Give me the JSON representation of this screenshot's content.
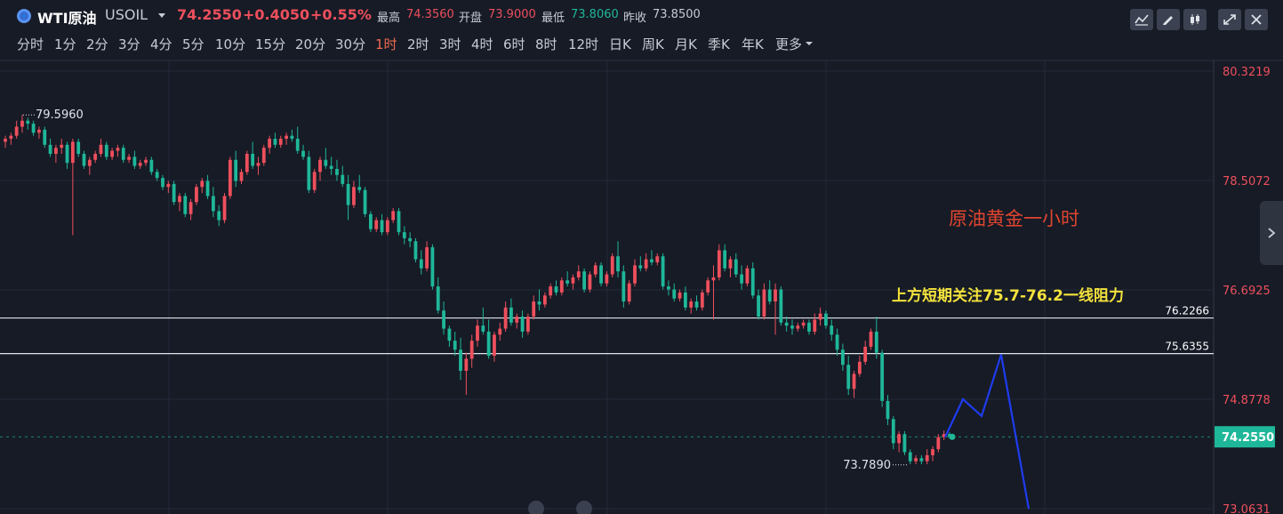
{
  "header": {
    "symbol_name": "WTI原油",
    "symbol_code": "USOIL",
    "last_price": "74.2550",
    "change": "+0.4050",
    "change_pct": "+0.55%",
    "high_label": "最高",
    "high": "74.3560",
    "open_label": "开盘",
    "open": "73.9000",
    "low_label": "最低",
    "low": "73.8060",
    "prev_label": "昨收",
    "prev_close": "73.8500"
  },
  "toolbar": {
    "icons": [
      "line-chart-icon",
      "draw-pen-icon",
      "candlestick-icon",
      "fullscreen-icon",
      "close-icon"
    ]
  },
  "periods": {
    "items": [
      "分时",
      "1分",
      "2分",
      "3分",
      "4分",
      "5分",
      "10分",
      "15分",
      "20分",
      "30分",
      "1时",
      "2时",
      "3时",
      "4时",
      "6时",
      "8时",
      "12时",
      "日K",
      "周K",
      "月K",
      "季K",
      "年K",
      "更多"
    ],
    "active": "1时"
  },
  "colors": {
    "background": "#161b26",
    "up": "#ee4f5c",
    "down": "#1fb799",
    "annotation_title": "#e0452f",
    "annotation_note": "#f4e23c",
    "projection": "#1f3cf0",
    "level_line": "#dfe3ea"
  },
  "chart_data": {
    "type": "candlestick",
    "y_axis_ticks": [
      80.3219,
      78.5072,
      76.6925,
      74.8778,
      73.0631
    ],
    "y_axis_labels": [
      "80.3219",
      "78.5072",
      "76.6925",
      "74.8778",
      "73.0631"
    ],
    "ylim": [
      73.0631,
      80.3219
    ],
    "horizontal_levels": [
      {
        "value": 76.2266,
        "label": "76.2266"
      },
      {
        "value": 75.6355,
        "label": "75.6355"
      }
    ],
    "current_price": {
      "value": 74.255,
      "label": "74.2550"
    },
    "extremes": {
      "high": {
        "value": 79.596,
        "label": "79.5960"
      },
      "low": {
        "value": 73.789,
        "label": "73.7890"
      }
    },
    "annotations": {
      "title": "原油黄金一小时",
      "note": "上方短期关注75.7-76.2一线阻力"
    },
    "projection_path": [
      74.25,
      74.88,
      74.6,
      75.62,
      73.06
    ],
    "ohlc": [
      [
        79.15,
        79.25,
        79.05,
        79.2
      ],
      [
        79.2,
        79.3,
        79.1,
        79.25
      ],
      [
        79.25,
        79.5,
        79.2,
        79.4
      ],
      [
        79.4,
        79.6,
        79.3,
        79.5
      ],
      [
        79.5,
        79.55,
        79.35,
        79.45
      ],
      [
        79.45,
        79.5,
        79.25,
        79.3
      ],
      [
        79.3,
        79.4,
        79.2,
        79.35
      ],
      [
        79.35,
        79.4,
        79.05,
        79.1
      ],
      [
        79.1,
        79.2,
        78.9,
        78.95
      ],
      [
        78.95,
        79.1,
        78.8,
        79.05
      ],
      [
        79.05,
        79.2,
        78.95,
        79.1
      ],
      [
        79.1,
        79.15,
        78.7,
        78.8
      ],
      [
        78.8,
        79.2,
        77.6,
        79.15
      ],
      [
        79.15,
        79.2,
        78.9,
        78.95
      ],
      [
        78.95,
        79.0,
        78.7,
        78.75
      ],
      [
        78.75,
        78.9,
        78.6,
        78.85
      ],
      [
        78.85,
        79.0,
        78.8,
        78.95
      ],
      [
        78.95,
        79.2,
        78.9,
        79.1
      ],
      [
        79.1,
        79.15,
        78.85,
        78.9
      ],
      [
        78.9,
        79.05,
        78.85,
        79.0
      ],
      [
        79.0,
        79.1,
        78.9,
        79.05
      ],
      [
        79.05,
        79.1,
        78.8,
        78.85
      ],
      [
        78.85,
        78.95,
        78.8,
        78.9
      ],
      [
        78.9,
        79.0,
        78.7,
        78.75
      ],
      [
        78.75,
        78.85,
        78.7,
        78.8
      ],
      [
        78.8,
        78.9,
        78.75,
        78.85
      ],
      [
        78.85,
        78.9,
        78.6,
        78.65
      ],
      [
        78.65,
        78.7,
        78.5,
        78.55
      ],
      [
        78.55,
        78.6,
        78.35,
        78.4
      ],
      [
        78.4,
        78.5,
        78.3,
        78.45
      ],
      [
        78.45,
        78.5,
        78.1,
        78.15
      ],
      [
        78.15,
        78.3,
        78.0,
        78.25
      ],
      [
        78.25,
        78.3,
        77.9,
        77.95
      ],
      [
        77.95,
        78.2,
        77.85,
        78.15
      ],
      [
        78.15,
        78.45,
        78.1,
        78.4
      ],
      [
        78.4,
        78.55,
        78.3,
        78.5
      ],
      [
        78.5,
        78.6,
        78.2,
        78.25
      ],
      [
        78.25,
        78.4,
        77.9,
        78.0
      ],
      [
        78.0,
        78.1,
        77.75,
        77.85
      ],
      [
        77.85,
        78.3,
        77.8,
        78.25
      ],
      [
        78.25,
        78.9,
        78.2,
        78.85
      ],
      [
        78.85,
        79.0,
        78.4,
        78.5
      ],
      [
        78.5,
        78.7,
        78.45,
        78.65
      ],
      [
        78.65,
        79.0,
        78.6,
        78.95
      ],
      [
        78.95,
        79.15,
        78.7,
        78.75
      ],
      [
        78.75,
        78.9,
        78.6,
        78.8
      ],
      [
        78.8,
        79.1,
        78.75,
        79.05
      ],
      [
        79.05,
        79.25,
        78.95,
        79.2
      ],
      [
        79.2,
        79.3,
        79.05,
        79.1
      ],
      [
        79.1,
        79.25,
        79.05,
        79.2
      ],
      [
        79.2,
        79.3,
        79.1,
        79.25
      ],
      [
        79.25,
        79.35,
        79.15,
        79.2
      ],
      [
        79.2,
        79.4,
        78.95,
        79.0
      ],
      [
        79.0,
        79.1,
        78.85,
        78.9
      ],
      [
        78.9,
        79.0,
        78.3,
        78.35
      ],
      [
        78.35,
        78.7,
        78.3,
        78.65
      ],
      [
        78.65,
        78.9,
        78.5,
        78.85
      ],
      [
        78.85,
        79.05,
        78.7,
        78.75
      ],
      [
        78.75,
        78.9,
        78.6,
        78.7
      ],
      [
        78.7,
        78.85,
        78.5,
        78.6
      ],
      [
        78.6,
        78.75,
        78.4,
        78.45
      ],
      [
        78.45,
        78.6,
        77.85,
        78.1
      ],
      [
        78.1,
        78.5,
        78.05,
        78.4
      ],
      [
        78.4,
        78.6,
        78.3,
        78.35
      ],
      [
        78.35,
        78.4,
        77.9,
        77.95
      ],
      [
        77.95,
        78.0,
        77.65,
        77.7
      ],
      [
        77.7,
        77.9,
        77.65,
        77.85
      ],
      [
        77.85,
        77.95,
        77.6,
        77.65
      ],
      [
        77.65,
        77.9,
        77.6,
        77.85
      ],
      [
        77.85,
        78.05,
        77.8,
        78.0
      ],
      [
        78.0,
        78.05,
        77.6,
        77.65
      ],
      [
        77.65,
        77.75,
        77.45,
        77.55
      ],
      [
        77.55,
        77.65,
        77.4,
        77.5
      ],
      [
        77.5,
        77.55,
        77.15,
        77.2
      ],
      [
        77.2,
        77.35,
        76.95,
        77.05
      ],
      [
        77.05,
        77.5,
        77.0,
        77.4
      ],
      [
        77.4,
        77.45,
        76.7,
        76.75
      ],
      [
        76.75,
        76.9,
        76.3,
        76.35
      ],
      [
        76.35,
        76.5,
        75.95,
        76.05
      ],
      [
        76.05,
        76.1,
        75.75,
        75.85
      ],
      [
        75.85,
        76.0,
        75.6,
        75.7
      ],
      [
        75.7,
        75.9,
        75.2,
        75.35
      ],
      [
        75.35,
        75.65,
        74.95,
        75.55
      ],
      [
        75.55,
        75.95,
        75.4,
        75.85
      ],
      [
        75.85,
        76.2,
        75.75,
        76.1
      ],
      [
        76.1,
        76.4,
        75.95,
        76.0
      ],
      [
        76.0,
        76.2,
        75.55,
        75.6
      ],
      [
        75.6,
        76.0,
        75.5,
        75.95
      ],
      [
        75.95,
        76.15,
        75.85,
        76.05
      ],
      [
        76.05,
        76.5,
        76.0,
        76.4
      ],
      [
        76.4,
        76.55,
        76.1,
        76.15
      ],
      [
        76.15,
        76.3,
        76.05,
        76.25
      ],
      [
        76.25,
        76.35,
        75.9,
        76.0
      ],
      [
        76.0,
        76.3,
        75.95,
        76.25
      ],
      [
        76.25,
        76.6,
        76.2,
        76.5
      ],
      [
        76.5,
        76.7,
        76.35,
        76.45
      ],
      [
        76.45,
        76.65,
        76.4,
        76.6
      ],
      [
        76.6,
        76.8,
        76.55,
        76.75
      ],
      [
        76.75,
        76.85,
        76.6,
        76.65
      ],
      [
        76.65,
        76.9,
        76.6,
        76.85
      ],
      [
        76.85,
        77.0,
        76.75,
        76.8
      ],
      [
        76.8,
        76.95,
        76.7,
        76.9
      ],
      [
        76.9,
        77.1,
        76.85,
        77.0
      ],
      [
        77.0,
        77.05,
        76.65,
        76.7
      ],
      [
        76.7,
        77.0,
        76.65,
        76.95
      ],
      [
        76.95,
        77.15,
        76.9,
        77.1
      ],
      [
        77.1,
        77.15,
        76.75,
        76.8
      ],
      [
        76.8,
        77.0,
        76.75,
        76.95
      ],
      [
        76.95,
        77.3,
        76.9,
        77.25
      ],
      [
        77.25,
        77.5,
        76.9,
        77.0
      ],
      [
        77.0,
        77.1,
        76.4,
        76.5
      ],
      [
        76.5,
        76.85,
        76.45,
        76.8
      ],
      [
        76.8,
        77.2,
        76.75,
        77.1
      ],
      [
        77.1,
        77.25,
        77.0,
        77.05
      ],
      [
        77.05,
        77.3,
        77.0,
        77.2
      ],
      [
        77.2,
        77.35,
        77.1,
        77.15
      ],
      [
        77.15,
        77.3,
        77.1,
        77.25
      ],
      [
        77.25,
        77.3,
        76.7,
        76.75
      ],
      [
        76.75,
        76.85,
        76.6,
        76.7
      ],
      [
        76.7,
        76.8,
        76.5,
        76.55
      ],
      [
        76.55,
        76.7,
        76.5,
        76.65
      ],
      [
        76.65,
        76.75,
        76.35,
        76.4
      ],
      [
        76.4,
        76.55,
        76.3,
        76.5
      ],
      [
        76.5,
        76.6,
        76.35,
        76.4
      ],
      [
        76.4,
        76.7,
        76.35,
        76.65
      ],
      [
        76.65,
        76.9,
        76.6,
        76.85
      ],
      [
        76.85,
        77.1,
        76.2,
        76.9
      ],
      [
        76.9,
        77.45,
        76.85,
        77.35
      ],
      [
        77.35,
        77.45,
        77.0,
        77.05
      ],
      [
        77.05,
        77.25,
        76.9,
        77.2
      ],
      [
        77.2,
        77.3,
        76.9,
        76.95
      ],
      [
        76.95,
        77.1,
        76.7,
        76.8
      ],
      [
        76.8,
        77.1,
        76.75,
        77.05
      ],
      [
        77.05,
        77.15,
        76.55,
        76.6
      ],
      [
        76.6,
        76.7,
        76.2,
        76.25
      ],
      [
        76.25,
        76.8,
        76.2,
        76.7
      ],
      [
        76.7,
        76.85,
        76.45,
        76.5
      ],
      [
        76.5,
        76.8,
        75.95,
        76.7
      ],
      [
        76.7,
        76.75,
        76.1,
        76.15
      ],
      [
        76.15,
        76.25,
        76.0,
        76.1
      ],
      [
        76.1,
        76.2,
        75.95,
        76.05
      ],
      [
        76.05,
        76.15,
        76.0,
        76.1
      ],
      [
        76.1,
        76.2,
        76.05,
        76.15
      ],
      [
        76.15,
        76.2,
        75.95,
        76.0
      ],
      [
        76.0,
        76.3,
        75.95,
        76.2
      ],
      [
        76.2,
        76.4,
        76.1,
        76.3
      ],
      [
        76.3,
        76.35,
        76.05,
        76.1
      ],
      [
        76.1,
        76.2,
        75.85,
        75.95
      ],
      [
        75.95,
        76.05,
        75.6,
        75.7
      ],
      [
        75.7,
        75.8,
        75.35,
        75.45
      ],
      [
        75.45,
        75.6,
        74.95,
        75.05
      ],
      [
        75.05,
        75.35,
        74.9,
        75.3
      ],
      [
        75.3,
        75.6,
        75.25,
        75.5
      ],
      [
        75.5,
        75.85,
        75.45,
        75.75
      ],
      [
        75.75,
        76.05,
        75.7,
        76.0
      ],
      [
        76.0,
        76.25,
        75.55,
        75.65
      ],
      [
        75.65,
        75.7,
        74.75,
        74.85
      ],
      [
        74.85,
        74.95,
        74.45,
        74.55
      ],
      [
        74.55,
        74.6,
        74.05,
        74.15
      ],
      [
        74.15,
        74.35,
        74.0,
        74.3
      ],
      [
        74.3,
        74.35,
        73.95,
        74.0
      ],
      [
        74.0,
        74.05,
        73.8,
        73.85
      ],
      [
        73.85,
        73.95,
        73.8,
        73.9
      ],
      [
        73.9,
        73.95,
        73.8,
        73.85
      ],
      [
        73.85,
        74.05,
        73.8,
        73.95
      ],
      [
        73.95,
        74.1,
        73.85,
        74.05
      ],
      [
        74.05,
        74.3,
        74.0,
        74.25
      ],
      [
        74.25,
        74.36,
        74.2,
        74.3
      ],
      [
        74.3,
        74.33,
        74.22,
        74.255
      ]
    ]
  }
}
